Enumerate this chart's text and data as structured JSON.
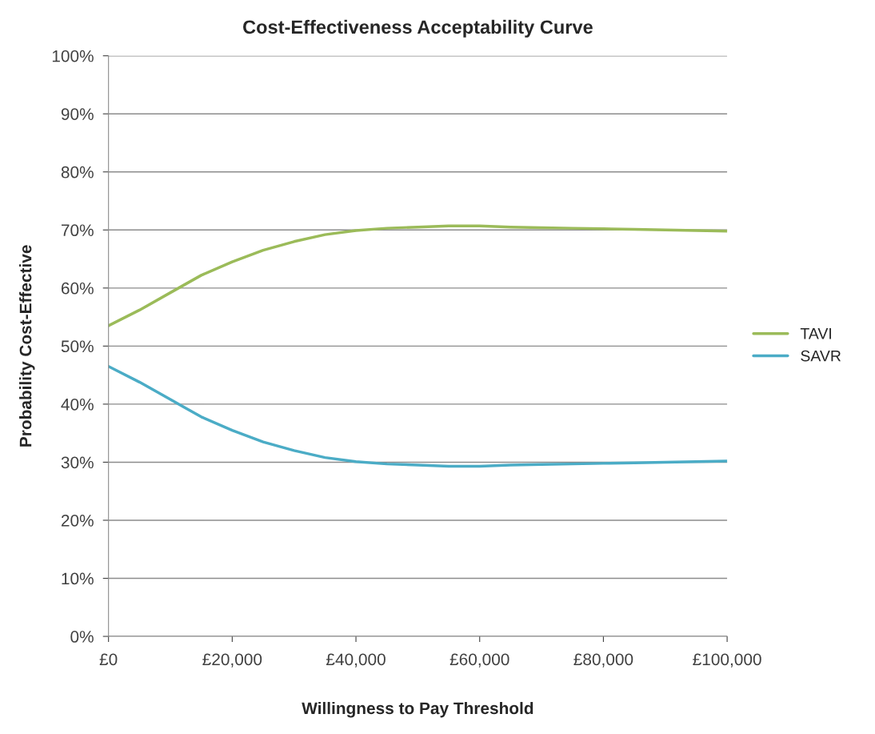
{
  "chart_data": {
    "type": "line",
    "title": "Cost-Effectiveness Acceptability Curve",
    "xlabel": "Willingness to Pay Threshold",
    "ylabel": "Probability Cost-Effective",
    "x": [
      0,
      5000,
      10000,
      15000,
      20000,
      25000,
      30000,
      35000,
      40000,
      45000,
      50000,
      55000,
      60000,
      65000,
      70000,
      75000,
      80000,
      85000,
      90000,
      95000,
      100000
    ],
    "series": [
      {
        "name": "TAVI",
        "color": "#9bbb59",
        "values": [
          53.5,
          56.2,
          59.2,
          62.2,
          64.5,
          66.5,
          68,
          69.2,
          69.9,
          70.3,
          70.5,
          70.7,
          70.7,
          70.5,
          70.4,
          70.3,
          70.2,
          70.1,
          70,
          69.9,
          69.8
        ]
      },
      {
        "name": "SAVR",
        "color": "#4bacc6",
        "values": [
          46.5,
          43.8,
          40.8,
          37.8,
          35.5,
          33.5,
          32,
          30.8,
          30.1,
          29.7,
          29.5,
          29.3,
          29.3,
          29.5,
          29.6,
          29.7,
          29.8,
          29.9,
          30,
          30.1,
          30.2
        ]
      }
    ],
    "xlim": [
      0,
      100000
    ],
    "xticks": [
      {
        "value": 0,
        "label": "£0"
      },
      {
        "value": 20000,
        "label": "£20,000"
      },
      {
        "value": 40000,
        "label": "£40,000"
      },
      {
        "value": 60000,
        "label": "£60,000"
      },
      {
        "value": 80000,
        "label": "£80,000"
      },
      {
        "value": 100000,
        "label": "£100,000"
      }
    ],
    "ylim": [
      0,
      100
    ],
    "yticks": [
      {
        "value": 0,
        "label": "0%"
      },
      {
        "value": 10,
        "label": "10%"
      },
      {
        "value": 20,
        "label": "20%"
      },
      {
        "value": 30,
        "label": "30%"
      },
      {
        "value": 40,
        "label": "40%"
      },
      {
        "value": 50,
        "label": "50%"
      },
      {
        "value": 60,
        "label": "60%"
      },
      {
        "value": 70,
        "label": "70%"
      },
      {
        "value": 80,
        "label": "80%"
      },
      {
        "value": 90,
        "label": "90%"
      },
      {
        "value": 100,
        "label": "100%"
      }
    ],
    "grid": "y",
    "legend": "right",
    "marker": "none",
    "line_style": "solid"
  }
}
